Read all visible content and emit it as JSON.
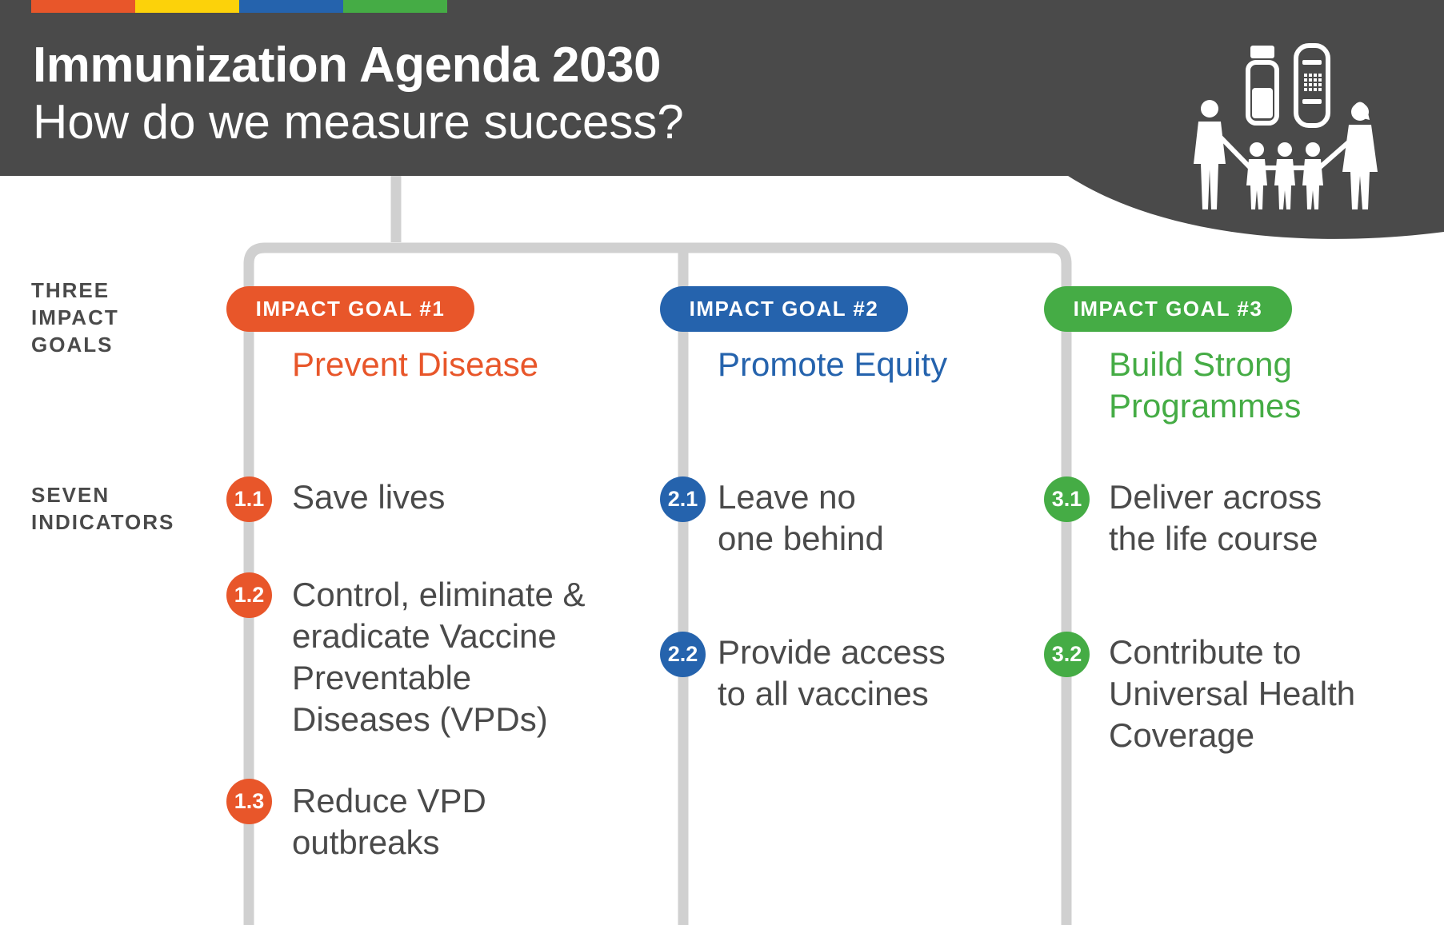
{
  "palette": {
    "dark": "#4a4a4a",
    "line": "#d0d0d0",
    "orange": "#e8562a",
    "yellow": "#fcd20a",
    "blue": "#2563ad",
    "green": "#45ac45",
    "white": "#ffffff"
  },
  "header": {
    "title": "Immunization Agenda 2030",
    "subtitle": "How do we measure success?",
    "icon": "family-vaccine-icon"
  },
  "row_labels": {
    "goals": [
      "THREE",
      "IMPACT",
      "GOALS"
    ],
    "indicators": [
      "SEVEN",
      "INDICATORS"
    ]
  },
  "goals": [
    {
      "pill": "IMPACT GOAL #1",
      "title": [
        "Prevent Disease"
      ],
      "indicators": [
        {
          "num": "1.1",
          "text": [
            "Save lives"
          ]
        },
        {
          "num": "1.2",
          "text": [
            "Control, eliminate &",
            "eradicate Vaccine",
            "Preventable",
            "Diseases (VPDs)"
          ]
        },
        {
          "num": "1.3",
          "text": [
            "Reduce VPD",
            "outbreaks"
          ]
        }
      ]
    },
    {
      "pill": "IMPACT GOAL #2",
      "title": [
        "Promote Equity"
      ],
      "indicators": [
        {
          "num": "2.1",
          "text": [
            "Leave no",
            "one behind"
          ]
        },
        {
          "num": "2.2",
          "text": [
            "Provide access",
            "to all vaccines"
          ]
        }
      ]
    },
    {
      "pill": "IMPACT GOAL #3",
      "title": [
        "Build Strong",
        "Programmes"
      ],
      "indicators": [
        {
          "num": "3.1",
          "text": [
            "Deliver across",
            "the life course"
          ]
        },
        {
          "num": "3.2",
          "text": [
            "Contribute to",
            "Universal Health",
            "Coverage"
          ]
        }
      ]
    }
  ]
}
